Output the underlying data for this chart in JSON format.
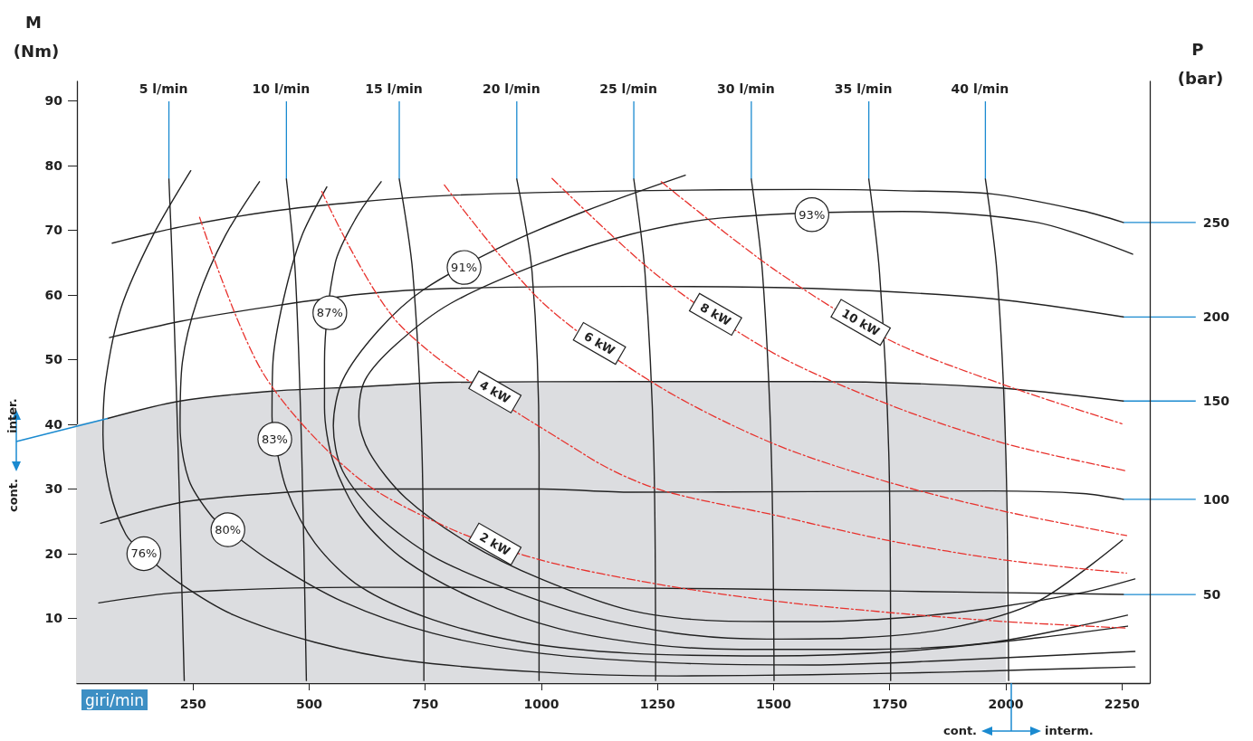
{
  "chart_data": {
    "type": "line",
    "xlabel": "giri/min",
    "ylabel": "M (Nm)",
    "y2label": "P (bar)",
    "xlim": [
      0,
      2310
    ],
    "ylim": [
      0,
      93
    ],
    "xticks": [
      250,
      500,
      750,
      1000,
      1250,
      1500,
      1750,
      2000,
      2250
    ],
    "yticks": [
      10,
      20,
      30,
      40,
      50,
      60,
      70,
      80,
      90
    ],
    "grid": false,
    "legend": false,
    "marker": "none",
    "annotations": [
      {
        "text": "inter.",
        "x": 66,
        "y": 40.9
      },
      "cont.",
      "cont.",
      "interm."
    ],
    "series": [
      {
        "type": "area",
        "color": "#dcdde0",
        "x": [
          0,
          66,
          222,
          416,
          610,
          805,
          1194,
          1582,
          1777,
          2000
        ],
        "values": [
          40.0,
          40.9,
          43.6,
          45.1,
          45.8,
          46.5,
          46.6,
          46.6,
          46.3,
          45.8
        ]
      },
      {
        "name": "250",
        "color": "#222222",
        "x": [
          76,
          222,
          416,
          610,
          805,
          1194,
          1582,
          1777,
          1971,
          2165,
          2253
        ],
        "values": [
          68.0,
          70.5,
          72.9,
          74.4,
          75.4,
          76.1,
          76.3,
          76.1,
          75.6,
          73.0,
          71.2
        ]
      },
      {
        "name": "200",
        "color": "#222222",
        "x": [
          70,
          222,
          416,
          610,
          805,
          1194,
          1582,
          1971,
          2253
        ],
        "values": [
          53.4,
          55.9,
          58.2,
          60.1,
          61.0,
          61.3,
          61.0,
          59.4,
          56.6
        ]
      },
      {
        "name": "150",
        "color": "#222222",
        "x": [
          66,
          222,
          416,
          610,
          805,
          1194,
          1582,
          1971,
          2253
        ],
        "values": [
          40.9,
          43.6,
          45.1,
          45.8,
          46.5,
          46.6,
          46.6,
          45.7,
          43.6
        ]
      },
      {
        "name": "100",
        "color": "#222222",
        "x": [
          51,
          222,
          416,
          610,
          999,
          1194,
          1582,
          1971,
          2166,
          2253
        ],
        "values": [
          24.7,
          27.9,
          29.3,
          30.0,
          30.0,
          29.5,
          29.6,
          29.7,
          29.3,
          28.4
        ]
      },
      {
        "name": "50",
        "color": "#222222",
        "x": [
          47,
          222,
          610,
          1194,
          1582,
          1971,
          2253
        ],
        "values": [
          12.4,
          14.0,
          14.8,
          14.7,
          14.4,
          14.0,
          13.7
        ]
      },
      {
        "name": "5 l/min",
        "color": "#222222",
        "x": [
          198,
          206,
          218,
          231
        ],
        "values": [
          77.9,
          63.5,
          35.6,
          0.4
        ]
      },
      {
        "name": "10 l/min",
        "color": "#222222",
        "x": [
          451,
          470,
          484,
          494
        ],
        "values": [
          77.9,
          63.5,
          35.6,
          0.4
        ]
      },
      {
        "name": "15 l/min",
        "color": "#222222",
        "x": [
          694,
          723,
          743,
          747
        ],
        "values": [
          77.9,
          63.5,
          35.6,
          0.4
        ]
      },
      {
        "name": "20 l/min",
        "color": "#222222",
        "x": [
          947,
          980,
          995,
          995
        ],
        "values": [
          77.9,
          63.5,
          35.6,
          0.4
        ]
      },
      {
        "name": "25 l/min",
        "color": "#222222",
        "x": [
          1199,
          1223,
          1242,
          1246
        ],
        "values": [
          77.9,
          63.5,
          35.6,
          0.4
        ]
      },
      {
        "name": "30 l/min",
        "color": "#222222",
        "x": [
          1452,
          1476,
          1495,
          1501
        ],
        "values": [
          77.9,
          63.5,
          35.6,
          0.4
        ]
      },
      {
        "name": "35 l/min",
        "color": "#222222",
        "x": [
          1705,
          1728,
          1748,
          1752
        ],
        "values": [
          77.9,
          63.5,
          35.6,
          0.4
        ]
      },
      {
        "name": "40 l/min",
        "color": "#222222",
        "x": [
          1956,
          1981,
          2000,
          2006
        ],
        "values": [
          77.9,
          63.5,
          35.6,
          0.4
        ]
      },
      {
        "name": "76%",
        "color": "#222222",
        "x": [
          245,
          163,
          95,
          62,
          56,
          70,
          105,
          144,
          222,
          338,
          513,
          708,
          999,
          1291,
          1582,
          1874,
          2068,
          2278
        ],
        "values": [
          79.2,
          69.1,
          58.0,
          46.8,
          38.4,
          30.0,
          23.0,
          20.0,
          15.4,
          10.5,
          6.3,
          3.5,
          1.7,
          1.1,
          1.3,
          1.7,
          2.1,
          2.5
        ]
      },
      {
        "name": "80%",
        "color": "#222222",
        "x": [
          393,
          319,
          260,
          227,
          222,
          241,
          290,
          325,
          416,
          572,
          766,
          999,
          1291,
          1582,
          1874,
          2278
        ],
        "values": [
          77.5,
          69.1,
          59.4,
          49.6,
          39.8,
          31.4,
          25.8,
          23.7,
          18.9,
          12.6,
          7.7,
          4.6,
          3.1,
          2.8,
          3.5,
          4.9
        ]
      },
      {
        "name": "83%",
        "color": "#222222",
        "x": [
          538,
          484,
          445,
          422,
          420,
          426,
          451,
          513,
          610,
          766,
          960,
          1194,
          1485,
          1777,
          2068,
          2262
        ],
        "values": [
          76.7,
          69.1,
          59.4,
          49.6,
          41.2,
          37.7,
          30.0,
          21.6,
          14.9,
          9.8,
          6.3,
          4.6,
          4.2,
          4.9,
          7.0,
          8.8
        ]
      },
      {
        "name": "87%",
        "color": "#222222",
        "x": [
          655,
          601,
          556,
          533,
          533,
          552,
          610,
          708,
          863,
          1038,
          1233,
          1427,
          1680,
          1971,
          2262
        ],
        "values": [
          77.5,
          71.9,
          64.9,
          49.6,
          42.6,
          34.2,
          25.8,
          18.9,
          12.8,
          8.4,
          6.0,
          5.2,
          5.2,
          6.3,
          10.5
        ]
      },
      {
        "name": "91%",
        "color": "#222222",
        "x": [
          1310,
          1096,
          921,
          746,
          649,
          572,
          552,
          572,
          649,
          766,
          921,
          1096,
          1291,
          1485,
          1680,
          1874,
          2068,
          2251
        ],
        "values": [
          78.5,
          73.0,
          67.7,
          60.8,
          54.5,
          46.8,
          39.8,
          32.8,
          25.8,
          19.6,
          14.7,
          10.5,
          7.7,
          6.8,
          7.0,
          8.4,
          12.6,
          22.1
        ]
      },
      {
        "name": "93%",
        "color": "#222222",
        "x": [
          2273,
          2068,
          1777,
          1388,
          1194,
          999,
          805,
          688,
          620,
          607,
          630,
          708,
          844,
          999,
          1194,
          1388,
          1582,
          1777,
          1971,
          2166,
          2278
        ],
        "values": [
          66.3,
          71.2,
          72.9,
          71.9,
          69.4,
          64.9,
          58.7,
          52.4,
          46.8,
          41.2,
          35.6,
          28.6,
          21.6,
          16.1,
          11.2,
          9.6,
          9.5,
          10.1,
          11.6,
          14.0,
          16.1
        ]
      },
      {
        "name": "2 kW",
        "color": "#e8322d",
        "line_style": "dashed",
        "x": [
          264,
          400,
          600,
          800,
          1000,
          1250,
          1500,
          1750,
          2000,
          2260
        ],
        "values": [
          72,
          48,
          32,
          24,
          19,
          15.3,
          12.7,
          10.9,
          9.5,
          8.5
        ]
      },
      {
        "name": "4 kW",
        "color": "#e8322d",
        "line_style": "dashed",
        "x": [
          527,
          700,
          1100,
          1250,
          1500,
          1750,
          2000,
          2260
        ],
        "values": [
          76,
          55,
          35,
          30,
          26,
          22,
          19,
          17
        ]
      },
      {
        "name": "6 kW",
        "color": "#e8322d",
        "line_style": "dashed",
        "x": [
          791,
          1000,
          1250,
          1500,
          1750,
          2000,
          2260
        ],
        "values": [
          77,
          59,
          46,
          37,
          31,
          26.5,
          22.8
        ]
      },
      {
        "name": "8 kW",
        "color": "#e8322d",
        "line_style": "dashed",
        "x": [
          1023,
          1250,
          1500,
          1750,
          2000,
          2260
        ],
        "values": [
          78,
          63,
          51,
          43,
          37,
          32.8
        ]
      },
      {
        "name": "10 kW",
        "color": "#e8322d",
        "line_style": "dashed",
        "x": [
          1258,
          1500,
          1750,
          2000,
          2250
        ],
        "values": [
          77.5,
          64,
          53,
          46,
          40.1
        ]
      }
    ]
  }
}
